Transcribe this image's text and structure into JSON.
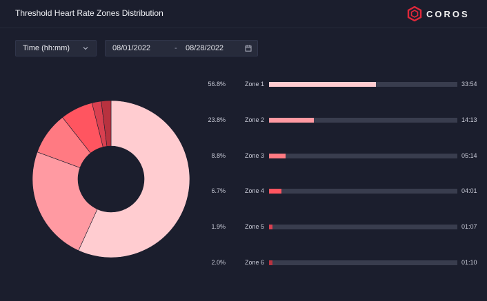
{
  "header": {
    "title": "Threshold Heart Rate Zones Distribution",
    "logo_text": "COROS"
  },
  "controls": {
    "metric_select": "Time (hh:mm)",
    "date_start": "08/01/2022",
    "date_separator": "-",
    "date_end": "08/28/2022"
  },
  "colors": {
    "background": "#1b1e2d",
    "track": "#393d4e",
    "zone1": "#ffccd0",
    "zone2": "#ff9aa2",
    "zone3": "#ff7a82",
    "zone4": "#ff5560",
    "zone5": "#d94050",
    "zone6": "#b8323f",
    "brand": "#e0283a"
  },
  "zones": [
    {
      "name": "Zone 1",
      "percent": "56.8%",
      "value": 56.8,
      "time": "33:54",
      "color": "#ffccd0"
    },
    {
      "name": "Zone 2",
      "percent": "23.8%",
      "value": 23.8,
      "time": "14:13",
      "color": "#ff9aa2"
    },
    {
      "name": "Zone 3",
      "percent": "8.8%",
      "value": 8.8,
      "time": "05:14",
      "color": "#ff7a82"
    },
    {
      "name": "Zone 4",
      "percent": "6.7%",
      "value": 6.7,
      "time": "04:01",
      "color": "#ff5560"
    },
    {
      "name": "Zone 5",
      "percent": "1.9%",
      "value": 1.9,
      "time": "01:07",
      "color": "#d94050"
    },
    {
      "name": "Zone 6",
      "percent": "2.0%",
      "value": 2.0,
      "time": "01:10",
      "color": "#b8323f"
    }
  ],
  "chart_data": {
    "type": "pie",
    "categories": [
      "Zone 1",
      "Zone 2",
      "Zone 3",
      "Zone 4",
      "Zone 5",
      "Zone 6"
    ],
    "values": [
      56.8,
      23.8,
      8.8,
      6.7,
      1.9,
      2.0
    ]
  }
}
